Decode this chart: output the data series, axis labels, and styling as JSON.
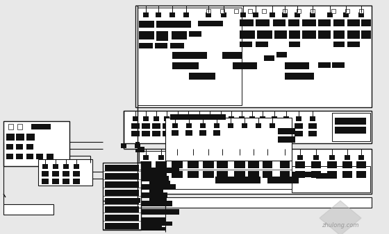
{
  "bg_color": "#e8e8e8",
  "fg_color": "#111111",
  "white": "#ffffff",
  "figsize": [
    5.6,
    3.38
  ],
  "dpi": 100,
  "watermark": "zhulong.com"
}
